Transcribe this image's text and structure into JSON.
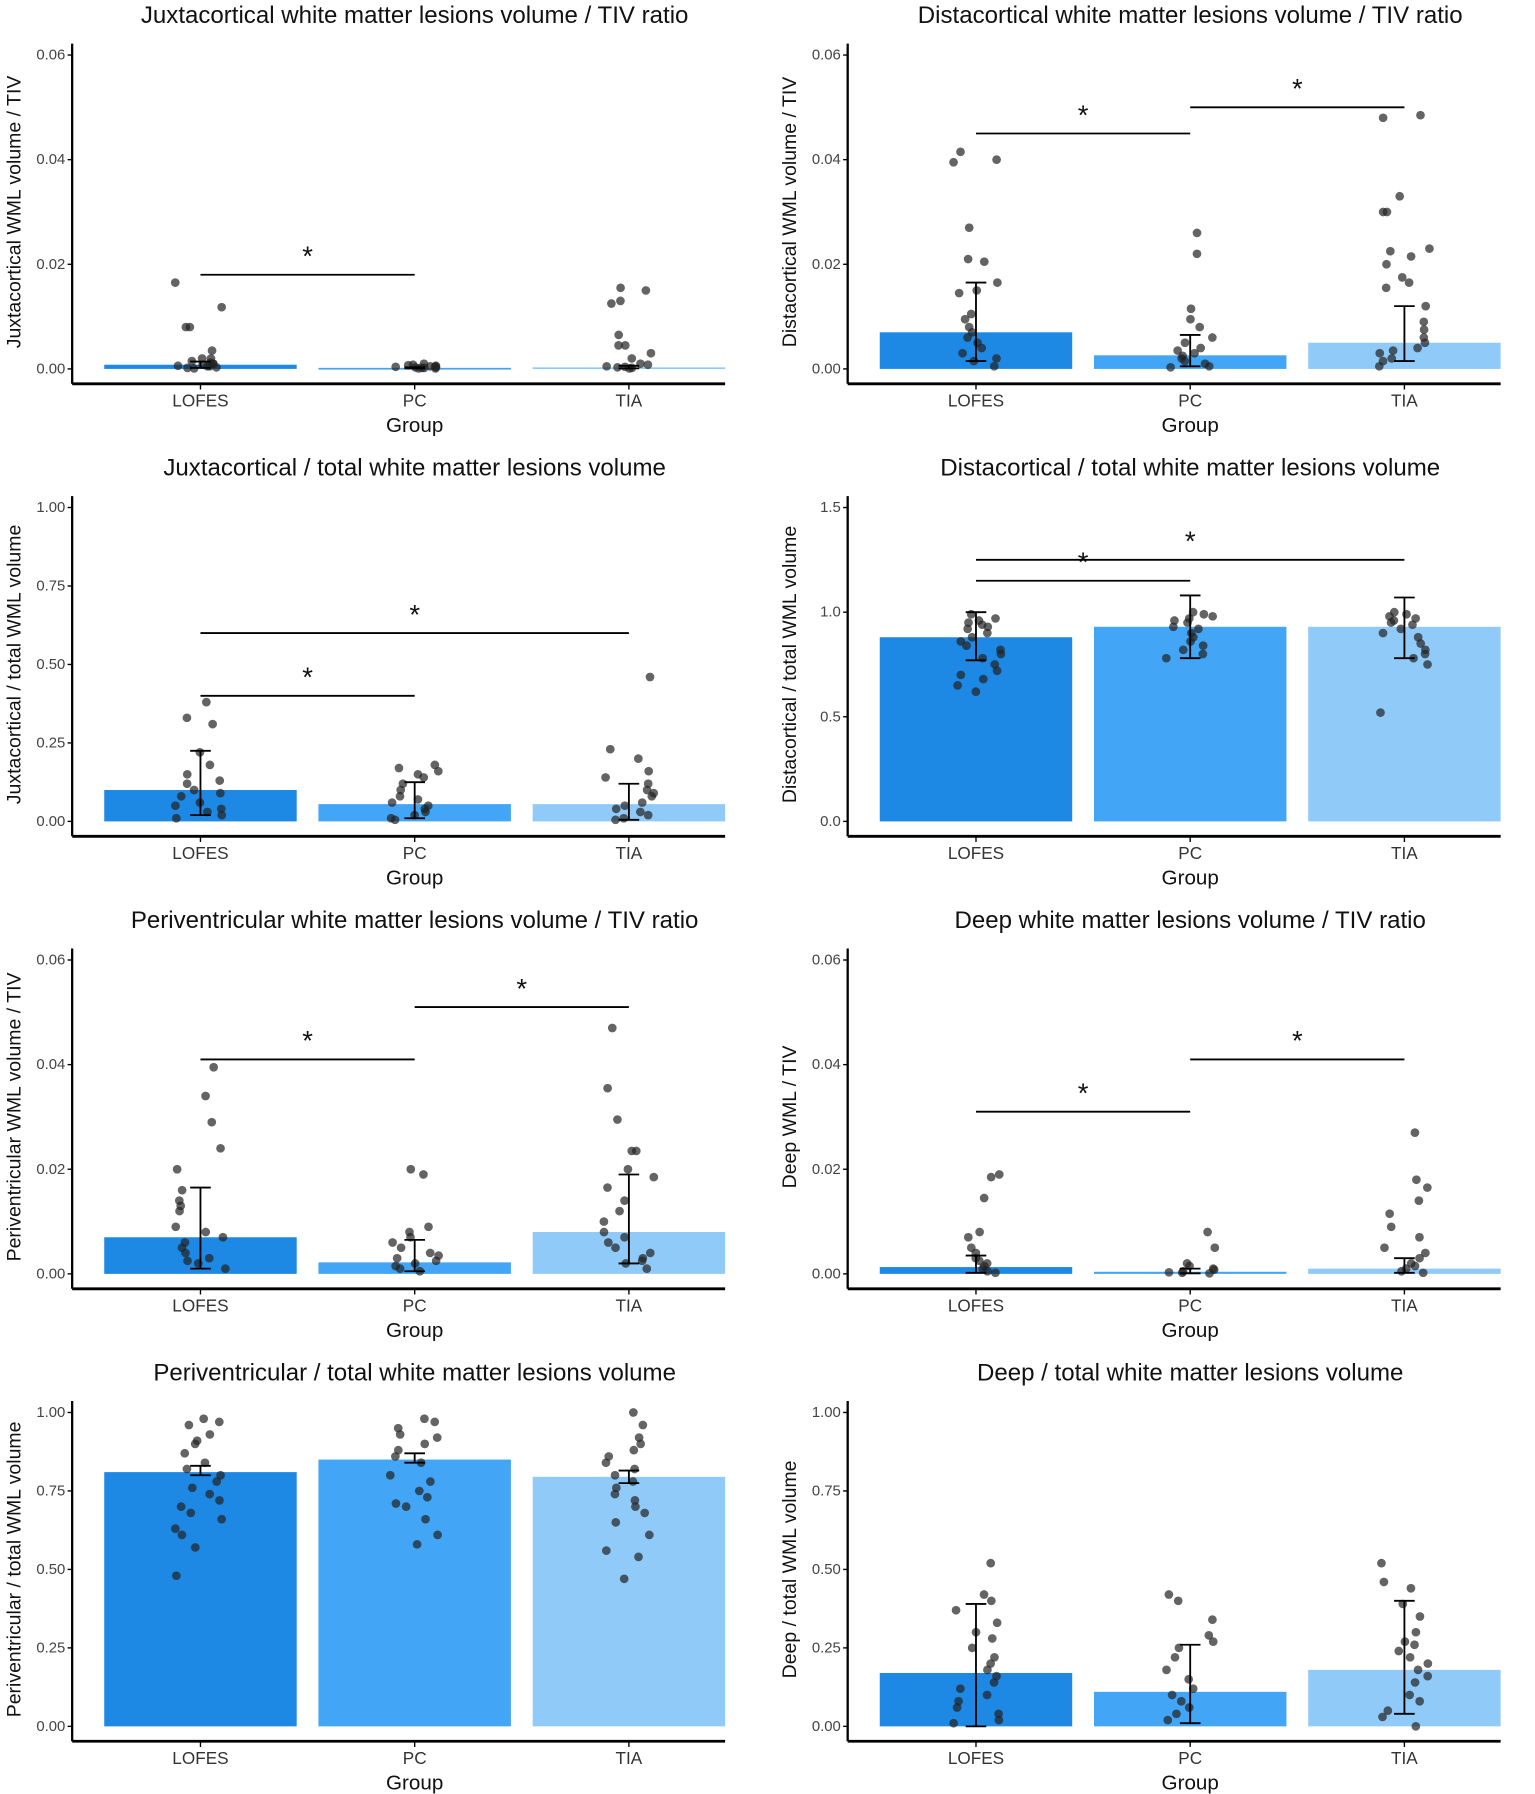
{
  "colors": {
    "LOFES": "#1e88e5",
    "PC": "#42a5f5",
    "TIA": "#90caf9",
    "point": "#222222"
  },
  "chart_data": [
    {
      "type": "bar",
      "title": "Juxtacortical white matter lesions volume / TIV ratio",
      "xlabel": "Group",
      "ylabel": "Juxtacortical WML volume / TIV",
      "categories": [
        "LOFES",
        "PC",
        "TIA"
      ],
      "ylim": [
        0,
        0.06
      ],
      "ticks": [
        0,
        0.02,
        0.04,
        0.06
      ],
      "tick_labels": [
        "0.00",
        "0.02",
        "0.04",
        "0.06"
      ],
      "means": [
        0.0008,
        0.0002,
        0.0003
      ],
      "errors": [
        [
          0.0002,
          0.0014
        ],
        [
          0.0001,
          0.0003
        ],
        [
          0.0001,
          0.0006
        ]
      ],
      "points": [
        [
          0.0165,
          0.0118,
          0.008,
          0.008,
          0.0035,
          0.002,
          0.0015,
          0.001,
          0.001,
          0.0008,
          0.0005,
          0.0005,
          0.0003,
          0.0002,
          0.0001,
          0.002,
          0.0012,
          0.0006
        ],
        [
          0.001,
          0.0008,
          0.0006,
          0.0005,
          0.0004,
          0.0003,
          0.0003,
          0.0002,
          0.0002,
          0.0001,
          0.0001,
          0.0005,
          0.0007
        ],
        [
          0.0155,
          0.015,
          0.013,
          0.0125,
          0.0065,
          0.0045,
          0.0045,
          0.003,
          0.002,
          0.001,
          0.0008,
          0.0005,
          0.0003,
          0.0002,
          0.0001,
          0.0004
        ]
      ],
      "significance": [
        {
          "from": "LOFES",
          "to": "PC",
          "y": 0.018,
          "label": "*"
        }
      ]
    },
    {
      "type": "bar",
      "title": "Distacortical white matter lesions volume / TIV ratio",
      "xlabel": "Group",
      "ylabel": "Distacortical WML volume / TIV",
      "categories": [
        "LOFES",
        "PC",
        "TIA"
      ],
      "ylim": [
        0,
        0.06
      ],
      "ticks": [
        0,
        0.02,
        0.04,
        0.06
      ],
      "tick_labels": [
        "0.00",
        "0.02",
        "0.04",
        "0.06"
      ],
      "means": [
        0.007,
        0.0026,
        0.005
      ],
      "errors": [
        [
          0.0015,
          0.0165
        ],
        [
          0.0005,
          0.0065
        ],
        [
          0.0015,
          0.012
        ]
      ],
      "points": [
        [
          0.0415,
          0.04,
          0.0395,
          0.027,
          0.021,
          0.0205,
          0.0165,
          0.015,
          0.0145,
          0.0105,
          0.0095,
          0.008,
          0.007,
          0.006,
          0.005,
          0.004,
          0.003,
          0.002,
          0.0015,
          0.0005
        ],
        [
          0.026,
          0.022,
          0.0115,
          0.0095,
          0.008,
          0.006,
          0.005,
          0.004,
          0.0035,
          0.003,
          0.0025,
          0.002,
          0.0015,
          0.001,
          0.0005,
          0.0003
        ],
        [
          0.0485,
          0.048,
          0.033,
          0.03,
          0.03,
          0.023,
          0.0225,
          0.0215,
          0.02,
          0.0175,
          0.0165,
          0.0155,
          0.012,
          0.009,
          0.0075,
          0.006,
          0.005,
          0.004,
          0.0035,
          0.003,
          0.002,
          0.0015,
          0.0005
        ]
      ],
      "significance": [
        {
          "from": "LOFES",
          "to": "PC",
          "y": 0.045,
          "label": "*"
        },
        {
          "from": "PC",
          "to": "TIA",
          "y": 0.05,
          "label": "*"
        }
      ]
    },
    {
      "type": "bar",
      "title": "Juxtacortical / total white matter lesions volume",
      "xlabel": "Group",
      "ylabel": "Juxtacortical / total WML volume",
      "categories": [
        "LOFES",
        "PC",
        "TIA"
      ],
      "ylim": [
        0,
        1
      ],
      "ticks": [
        0,
        0.25,
        0.5,
        0.75,
        1
      ],
      "tick_labels": [
        "0.00",
        "0.25",
        "0.50",
        "0.75",
        "1.00"
      ],
      "means": [
        0.1,
        0.055,
        0.055
      ],
      "errors": [
        [
          0.02,
          0.225
        ],
        [
          0.01,
          0.125
        ],
        [
          0.005,
          0.12
        ]
      ],
      "points": [
        [
          0.38,
          0.33,
          0.31,
          0.22,
          0.18,
          0.15,
          0.13,
          0.12,
          0.1,
          0.09,
          0.08,
          0.06,
          0.05,
          0.04,
          0.03,
          0.02,
          0.01
        ],
        [
          0.18,
          0.17,
          0.16,
          0.15,
          0.14,
          0.12,
          0.1,
          0.08,
          0.07,
          0.06,
          0.05,
          0.04,
          0.03,
          0.02,
          0.01,
          0.005
        ],
        [
          0.46,
          0.23,
          0.2,
          0.16,
          0.14,
          0.12,
          0.1,
          0.09,
          0.08,
          0.06,
          0.05,
          0.04,
          0.03,
          0.02,
          0.01,
          0.005
        ]
      ],
      "significance": [
        {
          "from": "LOFES",
          "to": "PC",
          "y": 0.4,
          "label": "*"
        },
        {
          "from": "LOFES",
          "to": "TIA",
          "y": 0.6,
          "label": "*"
        }
      ]
    },
    {
      "type": "bar",
      "title": "Distacortical / total white matter lesions volume",
      "xlabel": "Group",
      "ylabel": "Distacortical / total WML volume",
      "categories": [
        "LOFES",
        "PC",
        "TIA"
      ],
      "ylim": [
        0,
        1.5
      ],
      "ticks": [
        0,
        0.5,
        1,
        1.5
      ],
      "tick_labels": [
        "0.0",
        "0.5",
        "1.0",
        "1.5"
      ],
      "means": [
        0.88,
        0.93,
        0.93
      ],
      "errors": [
        [
          0.77,
          1.0
        ],
        [
          0.78,
          1.08
        ],
        [
          0.78,
          1.07
        ]
      ],
      "points": [
        [
          0.99,
          0.97,
          0.96,
          0.95,
          0.94,
          0.93,
          0.92,
          0.9,
          0.88,
          0.86,
          0.84,
          0.82,
          0.8,
          0.78,
          0.75,
          0.72,
          0.7,
          0.68,
          0.65,
          0.62
        ],
        [
          1.0,
          0.99,
          0.98,
          0.97,
          0.96,
          0.95,
          0.93,
          0.92,
          0.9,
          0.88,
          0.86,
          0.84,
          0.82,
          0.8,
          0.78
        ],
        [
          1.0,
          0.99,
          0.98,
          0.97,
          0.96,
          0.95,
          0.94,
          0.92,
          0.9,
          0.88,
          0.85,
          0.82,
          0.8,
          0.78,
          0.75,
          0.52
        ]
      ],
      "significance": [
        {
          "from": "LOFES",
          "to": "PC",
          "y": 1.15,
          "label": "*"
        },
        {
          "from": "LOFES",
          "to": "TIA",
          "y": 1.25,
          "label": "*"
        }
      ]
    },
    {
      "type": "bar",
      "title": "Periventricular white matter lesions volume / TIV ratio",
      "xlabel": "Group",
      "ylabel": "Periventricular WML volume / TIV",
      "categories": [
        "LOFES",
        "PC",
        "TIA"
      ],
      "ylim": [
        0,
        0.06
      ],
      "ticks": [
        0,
        0.02,
        0.04,
        0.06
      ],
      "tick_labels": [
        "0.00",
        "0.02",
        "0.04",
        "0.06"
      ],
      "means": [
        0.007,
        0.0022,
        0.008
      ],
      "errors": [
        [
          0.001,
          0.0165
        ],
        [
          0.0005,
          0.0065
        ],
        [
          0.002,
          0.019
        ]
      ],
      "points": [
        [
          0.0395,
          0.034,
          0.029,
          0.024,
          0.02,
          0.016,
          0.014,
          0.013,
          0.012,
          0.009,
          0.008,
          0.007,
          0.006,
          0.005,
          0.004,
          0.003,
          0.0025,
          0.002,
          0.001
        ],
        [
          0.02,
          0.019,
          0.009,
          0.008,
          0.007,
          0.006,
          0.005,
          0.004,
          0.0035,
          0.003,
          0.0025,
          0.002,
          0.0015,
          0.001,
          0.0005
        ],
        [
          0.047,
          0.0355,
          0.0295,
          0.0235,
          0.0235,
          0.02,
          0.0185,
          0.0165,
          0.014,
          0.012,
          0.01,
          0.008,
          0.007,
          0.006,
          0.005,
          0.004,
          0.003,
          0.0025,
          0.002,
          0.001
        ]
      ],
      "significance": [
        {
          "from": "LOFES",
          "to": "PC",
          "y": 0.041,
          "label": "*"
        },
        {
          "from": "PC",
          "to": "TIA",
          "y": 0.051,
          "label": "*"
        }
      ]
    },
    {
      "type": "bar",
      "title": "Deep white matter lesions volume / TIV ratio",
      "xlabel": "Group",
      "ylabel": "Deep WML / TIV",
      "categories": [
        "LOFES",
        "PC",
        "TIA"
      ],
      "ylim": [
        0,
        0.06
      ],
      "ticks": [
        0,
        0.02,
        0.04,
        0.06
      ],
      "tick_labels": [
        "0.00",
        "0.02",
        "0.04",
        "0.06"
      ],
      "means": [
        0.0013,
        0.0004,
        0.001
      ],
      "errors": [
        [
          0.0002,
          0.0035
        ],
        [
          0.0001,
          0.001
        ],
        [
          0.0002,
          0.003
        ]
      ],
      "points": [
        [
          0.019,
          0.0185,
          0.0145,
          0.008,
          0.007,
          0.005,
          0.004,
          0.003,
          0.0025,
          0.002,
          0.0015,
          0.001,
          0.0005,
          0.0002
        ],
        [
          0.008,
          0.005,
          0.002,
          0.0015,
          0.001,
          0.0008,
          0.0005,
          0.0003,
          0.0002,
          0.0001
        ],
        [
          0.027,
          0.018,
          0.0165,
          0.014,
          0.0115,
          0.009,
          0.007,
          0.005,
          0.004,
          0.003,
          0.002,
          0.0015,
          0.001,
          0.0005,
          0.0002
        ]
      ],
      "significance": [
        {
          "from": "LOFES",
          "to": "PC",
          "y": 0.031,
          "label": "*"
        },
        {
          "from": "PC",
          "to": "TIA",
          "y": 0.041,
          "label": "*"
        }
      ]
    },
    {
      "type": "bar",
      "title": "Periventricular / total white matter lesions volume",
      "xlabel": "Group",
      "ylabel": "Periventricular / total WML volume",
      "categories": [
        "LOFES",
        "PC",
        "TIA"
      ],
      "ylim": [
        0,
        1
      ],
      "ticks": [
        0,
        0.25,
        0.5,
        0.75,
        1
      ],
      "tick_labels": [
        "0.00",
        "0.25",
        "0.50",
        "0.75",
        "1.00"
      ],
      "means": [
        0.81,
        0.85,
        0.795
      ],
      "errors": [
        [
          0.8,
          0.83
        ],
        [
          0.84,
          0.87
        ],
        [
          0.775,
          0.815
        ]
      ],
      "points": [
        [
          0.98,
          0.97,
          0.96,
          0.93,
          0.91,
          0.9,
          0.87,
          0.84,
          0.82,
          0.8,
          0.78,
          0.76,
          0.74,
          0.72,
          0.7,
          0.68,
          0.66,
          0.63,
          0.61,
          0.57,
          0.48
        ],
        [
          0.98,
          0.97,
          0.95,
          0.93,
          0.92,
          0.9,
          0.88,
          0.86,
          0.84,
          0.8,
          0.78,
          0.75,
          0.73,
          0.71,
          0.7,
          0.66,
          0.61,
          0.58
        ],
        [
          1.0,
          0.96,
          0.92,
          0.9,
          0.88,
          0.86,
          0.84,
          0.82,
          0.8,
          0.78,
          0.76,
          0.74,
          0.72,
          0.7,
          0.68,
          0.65,
          0.61,
          0.56,
          0.54,
          0.47
        ]
      ],
      "significance": []
    },
    {
      "type": "bar",
      "title": "Deep / total white matter lesions volume",
      "xlabel": "Group",
      "ylabel": "Deep / total WML volume",
      "categories": [
        "LOFES",
        "PC",
        "TIA"
      ],
      "ylim": [
        0,
        1
      ],
      "ticks": [
        0,
        0.25,
        0.5,
        0.75,
        1
      ],
      "tick_labels": [
        "0.00",
        "0.25",
        "0.50",
        "0.75",
        "1.00"
      ],
      "means": [
        0.17,
        0.11,
        0.18
      ],
      "errors": [
        [
          0.0,
          0.39
        ],
        [
          0.01,
          0.26
        ],
        [
          0.04,
          0.4
        ]
      ],
      "points": [
        [
          0.52,
          0.42,
          0.4,
          0.37,
          0.33,
          0.3,
          0.28,
          0.25,
          0.22,
          0.2,
          0.18,
          0.16,
          0.14,
          0.12,
          0.1,
          0.08,
          0.06,
          0.04,
          0.02,
          0.01
        ],
        [
          0.42,
          0.4,
          0.34,
          0.29,
          0.27,
          0.25,
          0.22,
          0.18,
          0.15,
          0.12,
          0.1,
          0.08,
          0.06,
          0.04,
          0.02
        ],
        [
          0.52,
          0.46,
          0.44,
          0.39,
          0.35,
          0.3,
          0.27,
          0.26,
          0.24,
          0.22,
          0.2,
          0.18,
          0.16,
          0.14,
          0.1,
          0.08,
          0.05,
          0.03,
          0.0
        ]
      ],
      "significance": []
    }
  ]
}
